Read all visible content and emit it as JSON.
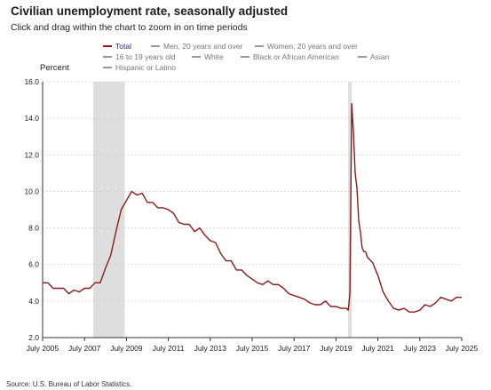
{
  "title": "Civilian unemployment rate, seasonally adjusted",
  "subtitle": "Click and drag within the chart to zoom in on time periods",
  "source": "Source: U.S. Bureau of Labor Statistics.",
  "colors": {
    "total": "#8b1a1a",
    "recession": "#dedede",
    "inactive": "#9e9e9e",
    "active_text": "#1f2a6b"
  },
  "legend": [
    {
      "label": "Total",
      "active": true
    },
    {
      "label": "Men, 20 years and over",
      "active": false
    },
    {
      "label": "Women, 20 years and over",
      "active": false
    },
    {
      "label": "16 to 19 years old",
      "active": false
    },
    {
      "label": "White",
      "active": false
    },
    {
      "label": "Black or African American",
      "active": false
    },
    {
      "label": "Asian",
      "active": false
    },
    {
      "label": "Hispanic or Latino",
      "active": false
    }
  ],
  "chart_data": {
    "type": "line",
    "ylabel": "Percent",
    "xlabel": "",
    "ylim": [
      2.0,
      16.0
    ],
    "xlim": [
      "2005-07",
      "2025-07"
    ],
    "y_ticks": [
      "2.0",
      "4.0",
      "6.0",
      "8.0",
      "10.0",
      "12.0",
      "14.0",
      "16.0"
    ],
    "x_ticks": [
      "July 2005",
      "July 2007",
      "July 2009",
      "July 2011",
      "July 2013",
      "July 2015",
      "July 2017",
      "July 2019",
      "July 2021",
      "July 2023",
      "July 2025"
    ],
    "grid": true,
    "recessions": [
      [
        "2007-12",
        "2009-06"
      ],
      [
        "2020-02",
        "2020-04"
      ]
    ],
    "series": [
      {
        "name": "Total",
        "x": [
          "2005-07",
          "2005-10",
          "2006-01",
          "2006-04",
          "2006-07",
          "2006-10",
          "2007-01",
          "2007-04",
          "2007-07",
          "2007-10",
          "2008-01",
          "2008-04",
          "2008-07",
          "2008-10",
          "2009-01",
          "2009-04",
          "2009-07",
          "2009-10",
          "2010-01",
          "2010-04",
          "2010-07",
          "2010-10",
          "2011-01",
          "2011-04",
          "2011-07",
          "2011-10",
          "2012-01",
          "2012-04",
          "2012-07",
          "2012-10",
          "2013-01",
          "2013-04",
          "2013-07",
          "2013-10",
          "2014-01",
          "2014-04",
          "2014-07",
          "2014-10",
          "2015-01",
          "2015-04",
          "2015-07",
          "2015-10",
          "2016-01",
          "2016-04",
          "2016-07",
          "2016-10",
          "2017-01",
          "2017-04",
          "2017-07",
          "2017-10",
          "2018-01",
          "2018-04",
          "2018-07",
          "2018-10",
          "2019-01",
          "2019-04",
          "2019-07",
          "2019-10",
          "2020-01",
          "2020-02",
          "2020-03",
          "2020-04",
          "2020-05",
          "2020-06",
          "2020-07",
          "2020-08",
          "2020-09",
          "2020-10",
          "2020-11",
          "2020-12",
          "2021-01",
          "2021-04",
          "2021-07",
          "2021-10",
          "2022-01",
          "2022-04",
          "2022-07",
          "2022-10",
          "2023-01",
          "2023-04",
          "2023-07",
          "2023-10",
          "2024-01",
          "2024-04",
          "2024-07",
          "2024-10",
          "2025-01",
          "2025-04",
          "2025-07"
        ],
        "values": [
          5.0,
          5.0,
          4.7,
          4.7,
          4.7,
          4.4,
          4.6,
          4.5,
          4.7,
          4.7,
          5.0,
          5.0,
          5.8,
          6.5,
          7.8,
          9.0,
          9.5,
          10.0,
          9.8,
          9.9,
          9.4,
          9.4,
          9.1,
          9.1,
          9.0,
          8.8,
          8.3,
          8.2,
          8.2,
          7.8,
          8.0,
          7.6,
          7.3,
          7.2,
          6.6,
          6.2,
          6.2,
          5.7,
          5.7,
          5.4,
          5.2,
          5.0,
          4.9,
          5.1,
          4.9,
          4.9,
          4.7,
          4.4,
          4.3,
          4.2,
          4.1,
          3.9,
          3.8,
          3.8,
          4.0,
          3.7,
          3.7,
          3.6,
          3.6,
          3.5,
          4.4,
          14.8,
          13.2,
          11.0,
          10.2,
          8.4,
          7.8,
          6.9,
          6.7,
          6.7,
          6.4,
          6.1,
          5.4,
          4.5,
          4.0,
          3.6,
          3.5,
          3.6,
          3.4,
          3.4,
          3.5,
          3.8,
          3.7,
          3.9,
          4.2,
          4.1,
          4.0,
          4.2,
          4.2
        ]
      }
    ]
  }
}
